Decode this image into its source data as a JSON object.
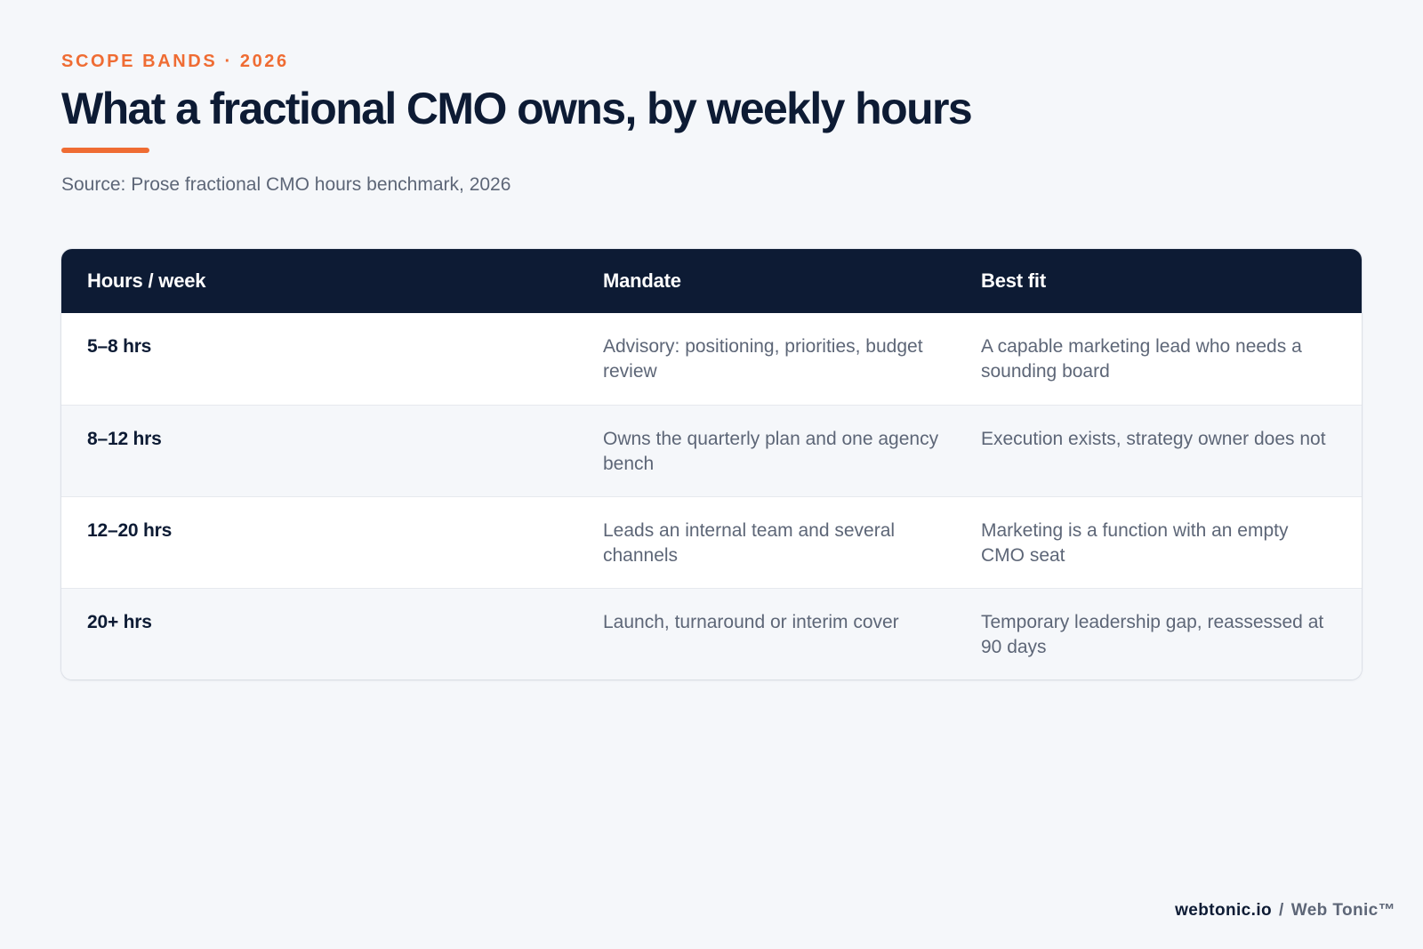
{
  "header": {
    "eyebrow": "SCOPE BANDS · 2026",
    "title": "What a fractional CMO owns, by weekly hours",
    "source": "Source: Prose fractional CMO hours benchmark, 2026"
  },
  "table": {
    "columns": [
      "Hours / week",
      "Mandate",
      "Best fit"
    ],
    "rows": [
      {
        "hours": "5–8 hrs",
        "mandate": "Advisory: positioning, priorities, budget review",
        "best_fit": "A capable marketing lead who needs a sounding board"
      },
      {
        "hours": "8–12 hrs",
        "mandate": "Owns the quarterly plan and one agency bench",
        "best_fit": "Execution exists, strategy owner does not"
      },
      {
        "hours": "12–20 hrs",
        "mandate": "Leads an internal team and several channels",
        "best_fit": "Marketing is a function with an empty CMO seat"
      },
      {
        "hours": "20+ hrs",
        "mandate": "Launch, turnaround or interim cover",
        "best_fit": "Temporary leadership gap, reassessed at 90 days"
      }
    ]
  },
  "footer": {
    "domain": "webtonic.io",
    "separator": "/",
    "brand": "Web Tonic™"
  },
  "colors": {
    "accent": "#ef6c33",
    "navy": "#0d1b34",
    "muted_text": "#5d6677",
    "background": "#f5f7fa"
  }
}
